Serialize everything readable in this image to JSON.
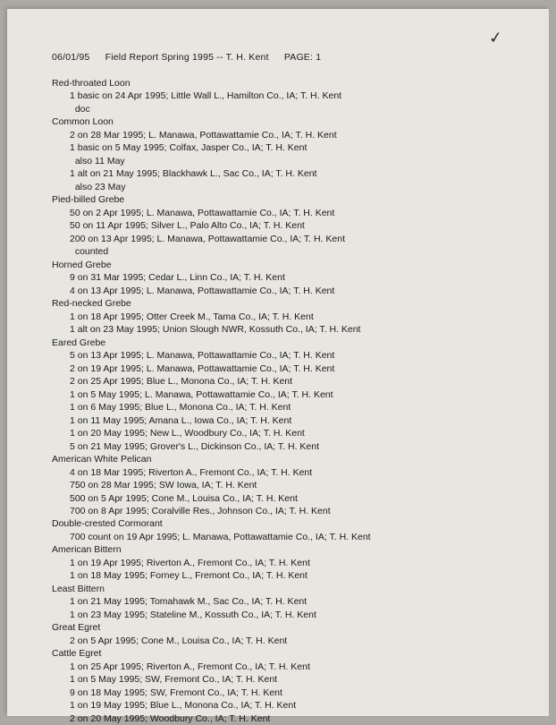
{
  "background_color": "#aca8a3",
  "paper_color": "#e8e6e1",
  "text_color": "#1a1a1a",
  "font_family": "Arial, Helvetica, sans-serif",
  "font_size_pt": 10.5,
  "checkmark_glyph": "✓",
  "comma_glyph": ",",
  "header": {
    "date": "06/01/95",
    "title": "Field Report Spring 1995 -- T. H. Kent",
    "page_label": "PAGE: 1"
  },
  "records": [
    {
      "species": "Red-throated Loon",
      "observations": [
        "1 basic on 24 Apr 1995; Little Wall L., Hamilton Co., IA; T. H. Kent\n  doc"
      ]
    },
    {
      "species": "Common Loon",
      "observations": [
        "2 on 28 Mar 1995; L. Manawa, Pottawattamie Co., IA; T. H. Kent",
        "1 basic on 5 May 1995; Colfax, Jasper Co., IA; T. H. Kent\n  also 11 May",
        "1 alt on 21 May 1995; Blackhawk L., Sac Co., IA; T. H. Kent\n  also 23 May"
      ]
    },
    {
      "species": "Pied-billed Grebe",
      "observations": [
        "50 on 2 Apr 1995; L. Manawa, Pottawattamie Co., IA; T. H. Kent",
        "50 on 11 Apr 1995; Silver L., Palo Alto Co., IA; T. H. Kent",
        "200 on 13 Apr 1995; L. Manawa, Pottawattamie Co., IA; T. H. Kent\n  counted"
      ]
    },
    {
      "species": "Horned Grebe",
      "observations": [
        "9 on 31 Mar 1995; Cedar L., Linn Co., IA; T. H. Kent",
        "4 on 13 Apr 1995; L. Manawa, Pottawattamie Co., IA; T. H. Kent"
      ]
    },
    {
      "species": "Red-necked Grebe",
      "observations": [
        "1 on 18 Apr 1995; Otter Creek M., Tama Co., IA; T. H. Kent",
        "1 alt on 23 May 1995; Union Slough NWR, Kossuth Co., IA; T. H. Kent"
      ]
    },
    {
      "species": "Eared Grebe",
      "observations": [
        "5 on 13 Apr 1995; L. Manawa, Pottawattamie Co., IA; T. H. Kent",
        "2 on 19 Apr 1995; L. Manawa, Pottawattamie Co., IA; T. H. Kent",
        "2 on 25 Apr 1995; Blue L., Monona Co., IA; T. H. Kent",
        "1 on 5 May 1995; L. Manawa, Pottawattamie Co., IA; T. H. Kent",
        "1 on 6 May 1995; Blue L., Monona Co., IA; T. H. Kent",
        "1 on 11 May 1995; Amana L., Iowa Co., IA; T. H. Kent",
        "1 on 20 May 1995; New L., Woodbury Co., IA; T. H. Kent",
        "5 on 21 May 1995; Grover's L., Dickinson Co., IA; T. H. Kent"
      ]
    },
    {
      "species": "American White Pelican",
      "observations": [
        "4 on 18 Mar 1995; Riverton A., Fremont Co., IA; T. H. Kent",
        "750 on 28 Mar 1995; SW Iowa, IA; T. H. Kent",
        "500 on 5 Apr 1995; Cone M., Louisa Co., IA; T. H. Kent",
        "700 on 8 Apr 1995; Coralville Res., Johnson Co., IA; T. H. Kent"
      ]
    },
    {
      "species": "Double-crested Cormorant",
      "observations": [
        "700 count on 19 Apr 1995; L. Manawa, Pottawattamie Co., IA; T. H. Kent"
      ]
    },
    {
      "species": "American Bittern",
      "observations": [
        "1 on 19 Apr 1995; Riverton A., Fremont Co., IA; T. H. Kent",
        "1 on 18 May 1995; Forney L., Fremont Co., IA; T. H. Kent"
      ]
    },
    {
      "species": "Least Bittern",
      "observations": [
        "1 on 21 May 1995; Tomahawk M., Sac Co., IA; T. H. Kent",
        "1 on 23 May 1995; Stateline M., Kossuth Co., IA; T. H. Kent"
      ]
    },
    {
      "species": "Great Egret",
      "observations": [
        "2 on 5 Apr 1995; Cone M., Louisa Co., IA; T. H. Kent"
      ]
    },
    {
      "species": "Cattle Egret",
      "observations": [
        "1 on 25 Apr 1995; Riverton A., Fremont Co., IA; T. H. Kent",
        "1 on 5 May 1995; SW, Fremont Co., IA; T. H. Kent",
        "9 on 18 May 1995; SW, Fremont Co., IA; T. H. Kent",
        "1 on 19 May 1995; Blue L., Monona Co., IA; T. H. Kent",
        "2 on 20 May 1995; Woodbury Co., IA; T. H. Kent"
      ]
    }
  ]
}
